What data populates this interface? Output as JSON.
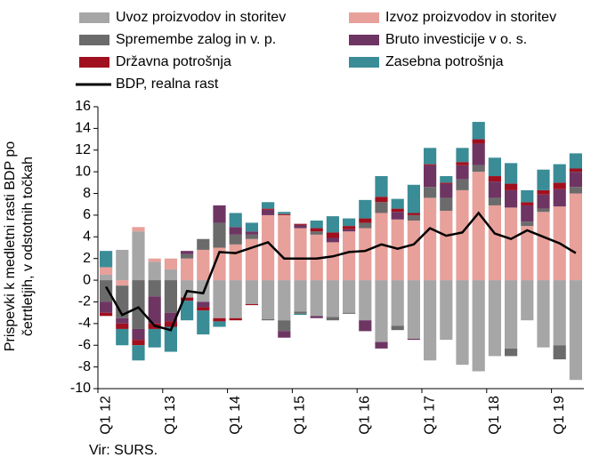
{
  "chart_data": {
    "type": "bar",
    "stacked": true,
    "y_label": "Prispevki k medletni rasti BDP po četrtletjih, v odstotnih  točkah",
    "source": "Vir: SURS.",
    "categories": [
      "Q1 12",
      null,
      null,
      null,
      "Q1 13",
      null,
      null,
      null,
      "Q1 14",
      null,
      null,
      null,
      "Q1 15",
      null,
      null,
      null,
      "Q1 16",
      null,
      null,
      null,
      "Q1 17",
      null,
      null,
      null,
      "Q1 18",
      null,
      null,
      null,
      "Q1 19",
      null
    ],
    "ylim": [
      -10,
      16
    ],
    "yticks": [
      -10,
      -8,
      -6,
      -4,
      -2,
      0,
      2,
      4,
      6,
      8,
      10,
      12,
      14,
      16
    ],
    "series": [
      {
        "name": "Uvoz proizvodov in storitev",
        "color": "#a6a6a6",
        "values": [
          0.5,
          2.8,
          4.5,
          1.7,
          1.0,
          -1.6,
          -2.0,
          -3.5,
          -3.5,
          -2.2,
          -3.6,
          -3.7,
          -2.9,
          -3.3,
          -3.4,
          -3.0,
          -3.7,
          -5.7,
          -4.2,
          -5.4,
          -7.4,
          -5.5,
          -7.8,
          -8.4,
          -7.0,
          -6.3,
          -3.7,
          -6.2,
          -6.0,
          -9.2
        ]
      },
      {
        "name": "Izvoz proizvodov in storitev",
        "color": "#e8a09a",
        "values": [
          0.7,
          -0.5,
          0.4,
          0.3,
          1.0,
          2.0,
          2.8,
          3.0,
          3.3,
          3.8,
          6.0,
          6.0,
          4.8,
          4.2,
          3.5,
          4.5,
          4.8,
          6.2,
          5.6,
          5.5,
          7.6,
          6.4,
          8.3,
          10.0,
          6.9,
          6.7,
          5.0,
          6.3,
          6.8,
          8.0
        ]
      },
      {
        "name": "Spremembe zalog in v. p.",
        "color": "#6b6b6b",
        "values": [
          -2.0,
          -3.0,
          -4.5,
          -1.5,
          -3.0,
          0.4,
          1.0,
          2.3,
          0.9,
          0.4,
          -0.1,
          -1.0,
          -0.2,
          0.3,
          -0.3,
          -0.1,
          0.5,
          1.0,
          -0.4,
          0.5,
          1.0,
          1.2,
          1.0,
          0.6,
          0.7,
          -0.7,
          0.4,
          0.3,
          -1.3,
          0.6
        ]
      },
      {
        "name": "Bruto investicije v o. s.",
        "color": "#6e3563",
        "values": [
          -1.0,
          -0.5,
          -1.0,
          -2.5,
          -0.8,
          0.3,
          -0.5,
          1.6,
          0.7,
          0.3,
          0.5,
          -0.6,
          0.3,
          -0.2,
          0.4,
          0.2,
          -1.0,
          -0.6,
          0.7,
          -0.1,
          2.0,
          1.3,
          1.3,
          2.0,
          1.5,
          1.6,
          1.5,
          1.3,
          1.6,
          1.4
        ]
      },
      {
        "name": "Državna potrošnja",
        "color": "#a0101e",
        "values": [
          -0.3,
          -0.5,
          -0.5,
          -0.5,
          -0.5,
          -0.3,
          -0.3,
          -0.3,
          -0.2,
          -0.1,
          0.1,
          0.1,
          0.1,
          0.3,
          0.5,
          0.3,
          0.4,
          0.5,
          0.3,
          0.2,
          0.1,
          0.1,
          0.3,
          0.4,
          0.5,
          0.6,
          0.3,
          0.4,
          0.6,
          0.3
        ]
      },
      {
        "name": "Zasebna potrošnja",
        "color": "#3a8c97",
        "values": [
          1.5,
          -1.5,
          -1.4,
          -1.7,
          -2.3,
          -1.8,
          -2.2,
          -0.5,
          1.3,
          0.8,
          0.6,
          0.2,
          -0.1,
          0.7,
          1.5,
          0.7,
          1.7,
          1.9,
          0.9,
          2.6,
          1.5,
          0.6,
          1.3,
          1.6,
          1.7,
          1.9,
          1.1,
          1.9,
          1.7,
          1.4
        ]
      },
      {
        "name": "BDP, realna rast",
        "color": "#000000",
        "kind": "line",
        "values": [
          -0.6,
          -3.2,
          -2.5,
          -4.2,
          -4.6,
          -1.0,
          -1.2,
          2.6,
          2.5,
          3.0,
          3.5,
          2.0,
          2.0,
          2.0,
          2.2,
          2.6,
          2.7,
          3.3,
          2.9,
          3.3,
          4.8,
          4.1,
          4.4,
          6.2,
          4.3,
          3.8,
          4.6,
          4.0,
          3.4,
          2.5
        ]
      }
    ]
  }
}
